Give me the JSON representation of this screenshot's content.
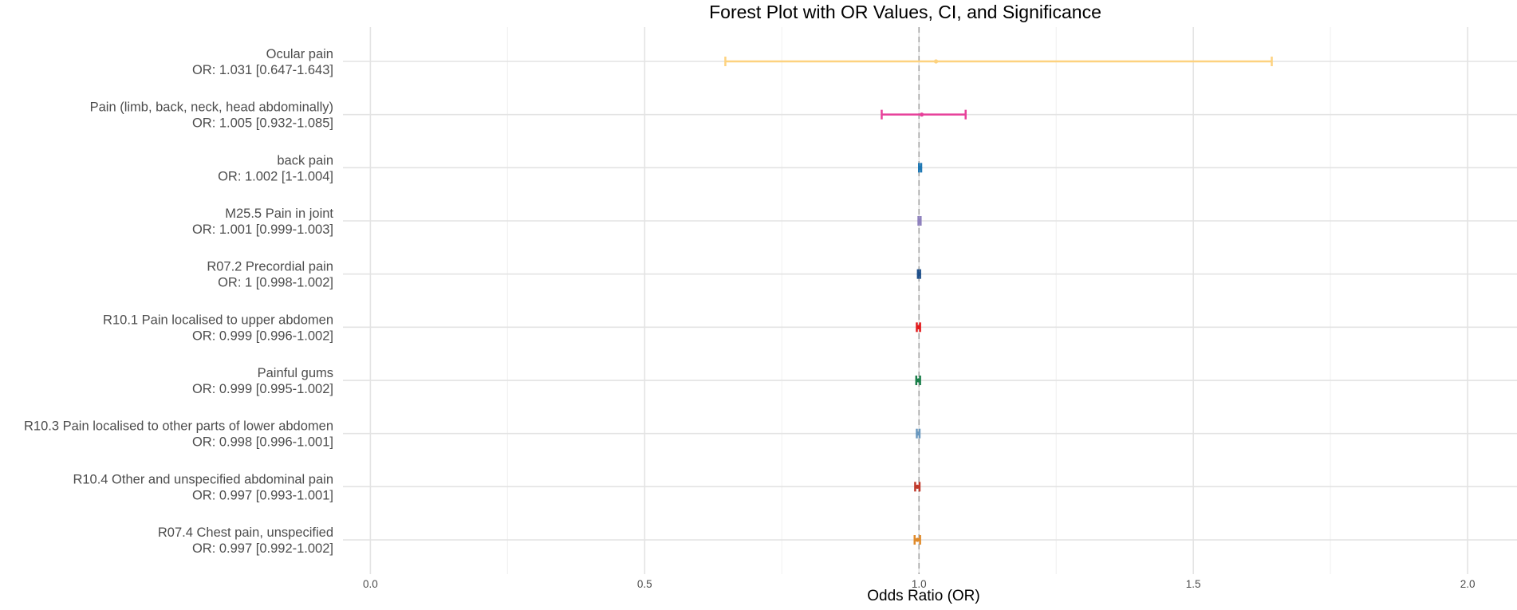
{
  "chart_data": {
    "type": "forest",
    "title": "Forest Plot with OR Values, CI, and Significance",
    "xlabel": "Odds Ratio (OR)",
    "ylabel": "",
    "xlim": [
      -0.05,
      2.09
    ],
    "xticks": [
      0.0,
      0.5,
      1.0,
      1.5,
      2.0
    ],
    "xtick_labels": [
      "0.0",
      "0.5",
      "1.0",
      "1.5",
      "2.0"
    ],
    "xminor": [
      0.25,
      0.75,
      1.25,
      1.75
    ],
    "reference_line": 1,
    "grid": true,
    "rows": [
      {
        "name": "Ocular pain",
        "or_label": "OR: 1.031 [0.647-1.643]",
        "or": 1.031,
        "lower": 0.647,
        "upper": 1.643,
        "color": "#FDD27F"
      },
      {
        "name": "Pain (limb, back, neck, head abdominally)",
        "or_label": "OR: 1.005 [0.932-1.085]",
        "or": 1.005,
        "lower": 0.932,
        "upper": 1.085,
        "color": "#E7409A"
      },
      {
        "name": "back pain",
        "or_label": "OR: 1.002 [1-1.004]",
        "or": 1.002,
        "lower": 1.0,
        "upper": 1.004,
        "color": "#1F78B4"
      },
      {
        "name": "M25.5 Pain in joint",
        "or_label": "OR: 1.001 [0.999-1.003]",
        "or": 1.001,
        "lower": 0.999,
        "upper": 1.003,
        "color": "#8E80BD"
      },
      {
        "name": "R07.2 Precordial pain",
        "or_label": "OR: 1 [0.998-1.002]",
        "or": 1.0,
        "lower": 0.998,
        "upper": 1.002,
        "color": "#1D4E89"
      },
      {
        "name": "R10.1 Pain localised to upper abdomen",
        "or_label": "OR: 0.999 [0.996-1.002]",
        "or": 0.999,
        "lower": 0.996,
        "upper": 1.002,
        "color": "#E31A1C"
      },
      {
        "name": "Painful gums",
        "or_label": "OR: 0.999 [0.995-1.002]",
        "or": 0.999,
        "lower": 0.995,
        "upper": 1.002,
        "color": "#1B7F4A"
      },
      {
        "name": "R10.3 Pain localised to other parts of lower abdomen",
        "or_label": "OR: 0.998 [0.996-1.001]",
        "or": 0.998,
        "lower": 0.996,
        "upper": 1.001,
        "color": "#6A98BE"
      },
      {
        "name": "R10.4 Other and unspecified abdominal pain",
        "or_label": "OR: 0.997 [0.993-1.001]",
        "or": 0.997,
        "lower": 0.993,
        "upper": 1.001,
        "color": "#C0392B"
      },
      {
        "name": "R07.4 Chest pain, unspecified",
        "or_label": "OR: 0.997 [0.992-1.002]",
        "or": 0.997,
        "lower": 0.992,
        "upper": 1.002,
        "color": "#E08A2A"
      }
    ]
  }
}
